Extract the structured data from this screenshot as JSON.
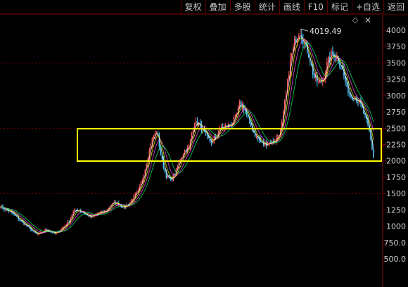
{
  "toolbar": {
    "items": [
      {
        "label": "复权"
      },
      {
        "label": "叠加"
      },
      {
        "label": "多股"
      },
      {
        "label": "统计"
      },
      {
        "label": "画线"
      },
      {
        "label": "F10"
      },
      {
        "label": "标记"
      },
      {
        "label": "+自选"
      },
      {
        "label": "返回"
      }
    ]
  },
  "header_icons": {
    "favorite": "diamond-icon",
    "close": "close-icon"
  },
  "colors": {
    "background": "#000000",
    "grid": "#8b0000",
    "up": "#ff5c5c",
    "down": "#4ec9ff",
    "ma_white": "#ffffff",
    "ma_yellow": "#ffff00",
    "ma_magenta": "#ff55ff",
    "ma_green": "#00ff66",
    "highlight": "#ffff00"
  },
  "chart_data": {
    "type": "line",
    "y_ticks": [
      "4000",
      "3750",
      "3500",
      "3250",
      "3000",
      "2750",
      "2500",
      "2250",
      "2000",
      "1750",
      "1500",
      "1250",
      "1000",
      "750.0",
      "500.0"
    ],
    "ylim": [
      500,
      4000
    ],
    "peak_label": "4019.49",
    "peak_value": 4019.49,
    "highlight_range": [
      2000,
      2490
    ],
    "series": [
      {
        "values": [
          1310,
          1260,
          1230,
          1180,
          1110,
          1050,
          990,
          930,
          870,
          900,
          950,
          920,
          880,
          940,
          1000,
          1080,
          1230,
          1250,
          1210,
          1160,
          1140,
          1190,
          1210,
          1230,
          1330,
          1360,
          1320,
          1290,
          1350,
          1440,
          1530,
          1740,
          2050,
          2330,
          2460,
          2040,
          1780,
          1700,
          1810,
          2010,
          2160,
          2200,
          2560,
          2580,
          2460,
          2340,
          2280,
          2400,
          2510,
          2520,
          2560,
          2640,
          2870,
          2810,
          2600,
          2440,
          2330,
          2250,
          2270,
          2290,
          2340,
          2500,
          3000,
          3550,
          3850,
          4000,
          3800,
          3620,
          3300,
          3190,
          3240,
          3500,
          3640,
          3600,
          3460,
          3180,
          3000,
          2980,
          2890,
          2700,
          2480,
          2060
        ]
      }
    ]
  }
}
